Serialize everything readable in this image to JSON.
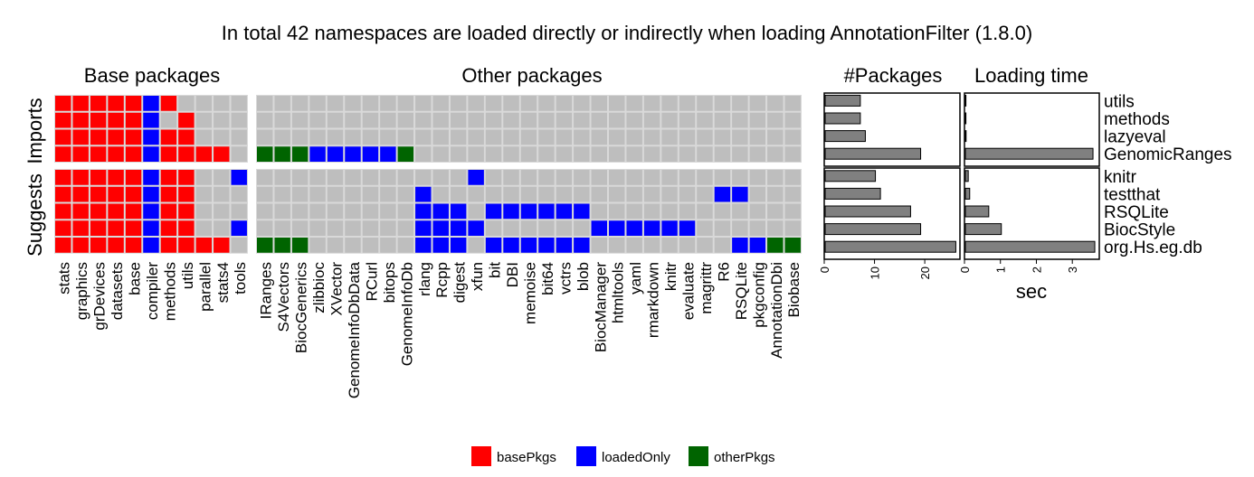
{
  "chart_data": [
    {
      "type": "heatmap",
      "title": "In total 42 namespaces are loaded directly or indirectly when loading AnnotationFilter (1.8.0)",
      "panels": [
        "Base packages",
        "Other packages"
      ],
      "row_groups": [
        "Imports",
        "Suggests"
      ],
      "legend": {
        "position": "bottom",
        "items": [
          {
            "label": "basePkgs",
            "color": "#ff0000"
          },
          {
            "label": "loadedOnly",
            "color": "#0000ff"
          },
          {
            "label": "otherPkgs",
            "color": "#006400"
          }
        ]
      },
      "colors": {
        "basePkgs": "#ff0000",
        "loadedOnly": "#0000ff",
        "otherPkgs": "#006400",
        "none": "#bebebe"
      },
      "columns_base": [
        "stats",
        "graphics",
        "grDevices",
        "datasets",
        "base",
        "compiler",
        "methods",
        "utils",
        "parallel",
        "stats4",
        "tools"
      ],
      "columns_other": [
        "IRanges",
        "S4Vectors",
        "BiocGenerics",
        "zlibbioc",
        "XVector",
        "GenomeInfoDbData",
        "RCurl",
        "bitops",
        "GenomeInfoDb",
        "rlang",
        "Rcpp",
        "digest",
        "xfun",
        "bit",
        "DBI",
        "memoise",
        "bit64",
        "vctrs",
        "blob",
        "BiocManager",
        "htmltools",
        "yaml",
        "rmarkdown",
        "knitr",
        "evaluate",
        "magrittr",
        "R6",
        "RSQLite",
        "pkgconfig",
        "AnnotationDbi",
        "Biobase"
      ],
      "rows_imports": [
        "utils",
        "methods",
        "lazyeval",
        "GenomicRanges"
      ],
      "rows_suggests": [
        "knitr",
        "testthat",
        "RSQLite",
        "BiocStyle",
        "org.Hs.eg.db"
      ],
      "imports_base": [
        "RRRRRBR____",
        "RRRRRB_R___",
        "RRRRRBRR___",
        "RRRRRBRRRR_"
      ],
      "imports_other": [
        "_______________________________",
        "_______________________________",
        "_______________________________",
        "GGGBBBBBG______________________"
      ],
      "suggests_base": [
        "RRRRRBRR__B",
        "RRRRRBRR___",
        "RRRRRBRR___",
        "RRRRRBRR__B",
        "RRRRRBRRRR_"
      ],
      "suggests_other": [
        "____________B__________________",
        "_________B________________BB___",
        "_________BBB_BBBBBB____________",
        "_________BBBB______BBBBBB______",
        "GGG______BBB_BBBBBB________BBGG"
      ]
    },
    {
      "type": "bar",
      "orientation": "horizontal",
      "title": "#Packages",
      "xlabel": "",
      "xlim": [
        0,
        27
      ],
      "ticks": [
        "0",
        "10",
        "20"
      ],
      "tick_values": [
        0,
        10,
        20
      ],
      "groups": [
        {
          "categories": [
            "utils",
            "methods",
            "lazyeval",
            "GenomicRanges"
          ],
          "values": [
            7,
            7,
            8,
            19
          ]
        },
        {
          "categories": [
            "knitr",
            "testthat",
            "RSQLite",
            "BiocStyle",
            "org.Hs.eg.db"
          ],
          "values": [
            10,
            11,
            17,
            19,
            26
          ]
        }
      ]
    },
    {
      "type": "bar",
      "orientation": "horizontal",
      "title": "Loading time",
      "xlabel": "sec",
      "xlim": [
        0,
        3.75
      ],
      "ticks": [
        "0",
        "1",
        "2",
        "3"
      ],
      "tick_values": [
        0,
        1,
        2,
        3
      ],
      "groups": [
        {
          "categories": [
            "utils",
            "methods",
            "lazyeval",
            "GenomicRanges"
          ],
          "values": [
            0.0,
            0.01,
            0.02,
            3.55
          ]
        },
        {
          "categories": [
            "knitr",
            "testthat",
            "RSQLite",
            "BiocStyle",
            "org.Hs.eg.db"
          ],
          "values": [
            0.08,
            0.12,
            0.65,
            1.0,
            3.6
          ]
        }
      ]
    }
  ]
}
